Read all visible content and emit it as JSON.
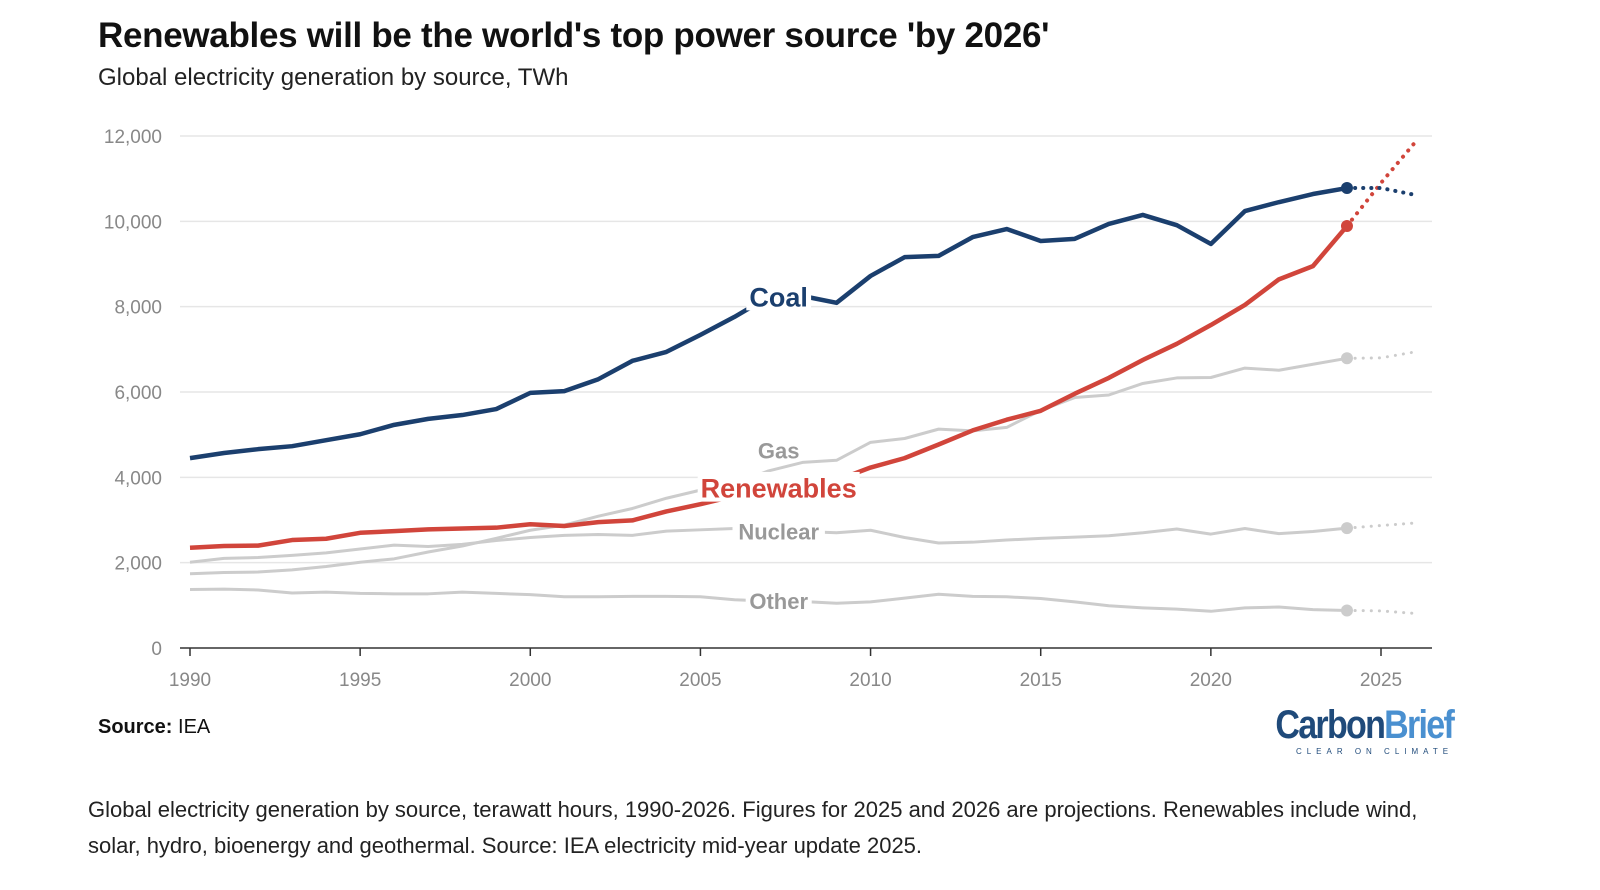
{
  "title": "Renewables will be the world's top power source 'by 2026'",
  "subtitle": "Global electricity generation by source, TWh",
  "source_label": "Source:",
  "source_value": "IEA",
  "logo": {
    "part1": "Carbon",
    "part2": "Brief",
    "tagline": "CLEAR ON CLIMATE"
  },
  "caption": "Global electricity generation by source, terawatt hours, 1990-2026. Figures for 2025 and 2026 are projections. Renewables include wind, solar, hydro, bioenergy and geothermal. Source: IEA electricity mid-year update 2025.",
  "chart_data": {
    "type": "line",
    "title": "Renewables will be the world's top power source 'by 2026'",
    "subtitle": "Global electricity generation by source, TWh",
    "x": [
      1990,
      1991,
      1992,
      1993,
      1994,
      1995,
      1996,
      1997,
      1998,
      1999,
      2000,
      2001,
      2002,
      2003,
      2004,
      2005,
      2006,
      2007,
      2008,
      2009,
      2010,
      2011,
      2012,
      2013,
      2014,
      2015,
      2016,
      2017,
      2018,
      2019,
      2020,
      2021,
      2022,
      2023,
      2024,
      2025,
      2026
    ],
    "projection_from": 2024,
    "xlim": [
      1990,
      2026
    ],
    "ylim": [
      0,
      12000
    ],
    "x_ticks": [
      "1990",
      "1995",
      "2000",
      "2005",
      "2010",
      "2015",
      "2020",
      "2025"
    ],
    "y_ticks": [
      "0",
      "2,000",
      "4,000",
      "6,000",
      "8,000",
      "10,000",
      "12,000"
    ],
    "grid": "horizontal",
    "legend": "inline labels",
    "series": [
      {
        "name": "Other",
        "color": "#cccccc",
        "label_color": "#999999",
        "label_year": 2007.3,
        "values": [
          1370,
          1380,
          1360,
          1290,
          1310,
          1280,
          1270,
          1270,
          1310,
          1280,
          1250,
          1200,
          1200,
          1210,
          1210,
          1200,
          1130,
          1100,
          1090,
          1050,
          1080,
          1170,
          1260,
          1210,
          1200,
          1160,
          1080,
          990,
          940,
          910,
          860,
          940,
          960,
          900,
          880,
          870,
          810
        ]
      },
      {
        "name": "Nuclear",
        "color": "#cccccc",
        "label_color": "#999999",
        "label_year": 2007.3,
        "values": [
          2010,
          2100,
          2120,
          2170,
          2230,
          2320,
          2410,
          2380,
          2430,
          2520,
          2590,
          2640,
          2660,
          2640,
          2740,
          2770,
          2800,
          2720,
          2730,
          2700,
          2760,
          2590,
          2460,
          2480,
          2530,
          2570,
          2600,
          2630,
          2700,
          2790,
          2670,
          2800,
          2680,
          2730,
          2810,
          2870,
          2930
        ]
      },
      {
        "name": "Gas",
        "color": "#cccccc",
        "label_color": "#999999",
        "label_year": 2007.3,
        "values": [
          1740,
          1770,
          1780,
          1830,
          1910,
          2010,
          2090,
          2250,
          2390,
          2570,
          2760,
          2880,
          3090,
          3270,
          3510,
          3700,
          3860,
          4150,
          4350,
          4400,
          4820,
          4910,
          5130,
          5090,
          5170,
          5570,
          5870,
          5930,
          6200,
          6330,
          6340,
          6560,
          6510,
          6650,
          6790,
          6800,
          6940
        ]
      },
      {
        "name": "Renewables",
        "color": "#d1453b",
        "label_color": "#d1453b",
        "label_year": 2007.3,
        "values": [
          2350,
          2390,
          2400,
          2530,
          2560,
          2700,
          2740,
          2780,
          2800,
          2820,
          2900,
          2860,
          2950,
          2990,
          3200,
          3370,
          3560,
          3700,
          3790,
          3930,
          4230,
          4450,
          4770,
          5100,
          5350,
          5560,
          5960,
          6330,
          6750,
          7130,
          7570,
          8040,
          8640,
          8950,
          9890,
          10900,
          11850
        ]
      },
      {
        "name": "Coal",
        "color": "#1b3f6e",
        "label_color": "#1b3f6e",
        "label_year": 2007.3,
        "values": [
          4450,
          4570,
          4660,
          4730,
          4870,
          5010,
          5230,
          5370,
          5460,
          5600,
          5980,
          6020,
          6300,
          6730,
          6940,
          7340,
          7760,
          8230,
          8250,
          8090,
          8720,
          9160,
          9190,
          9630,
          9820,
          9540,
          9590,
          9940,
          10150,
          9910,
          9470,
          10240,
          10450,
          10640,
          10780,
          10780,
          10620
        ]
      }
    ]
  }
}
